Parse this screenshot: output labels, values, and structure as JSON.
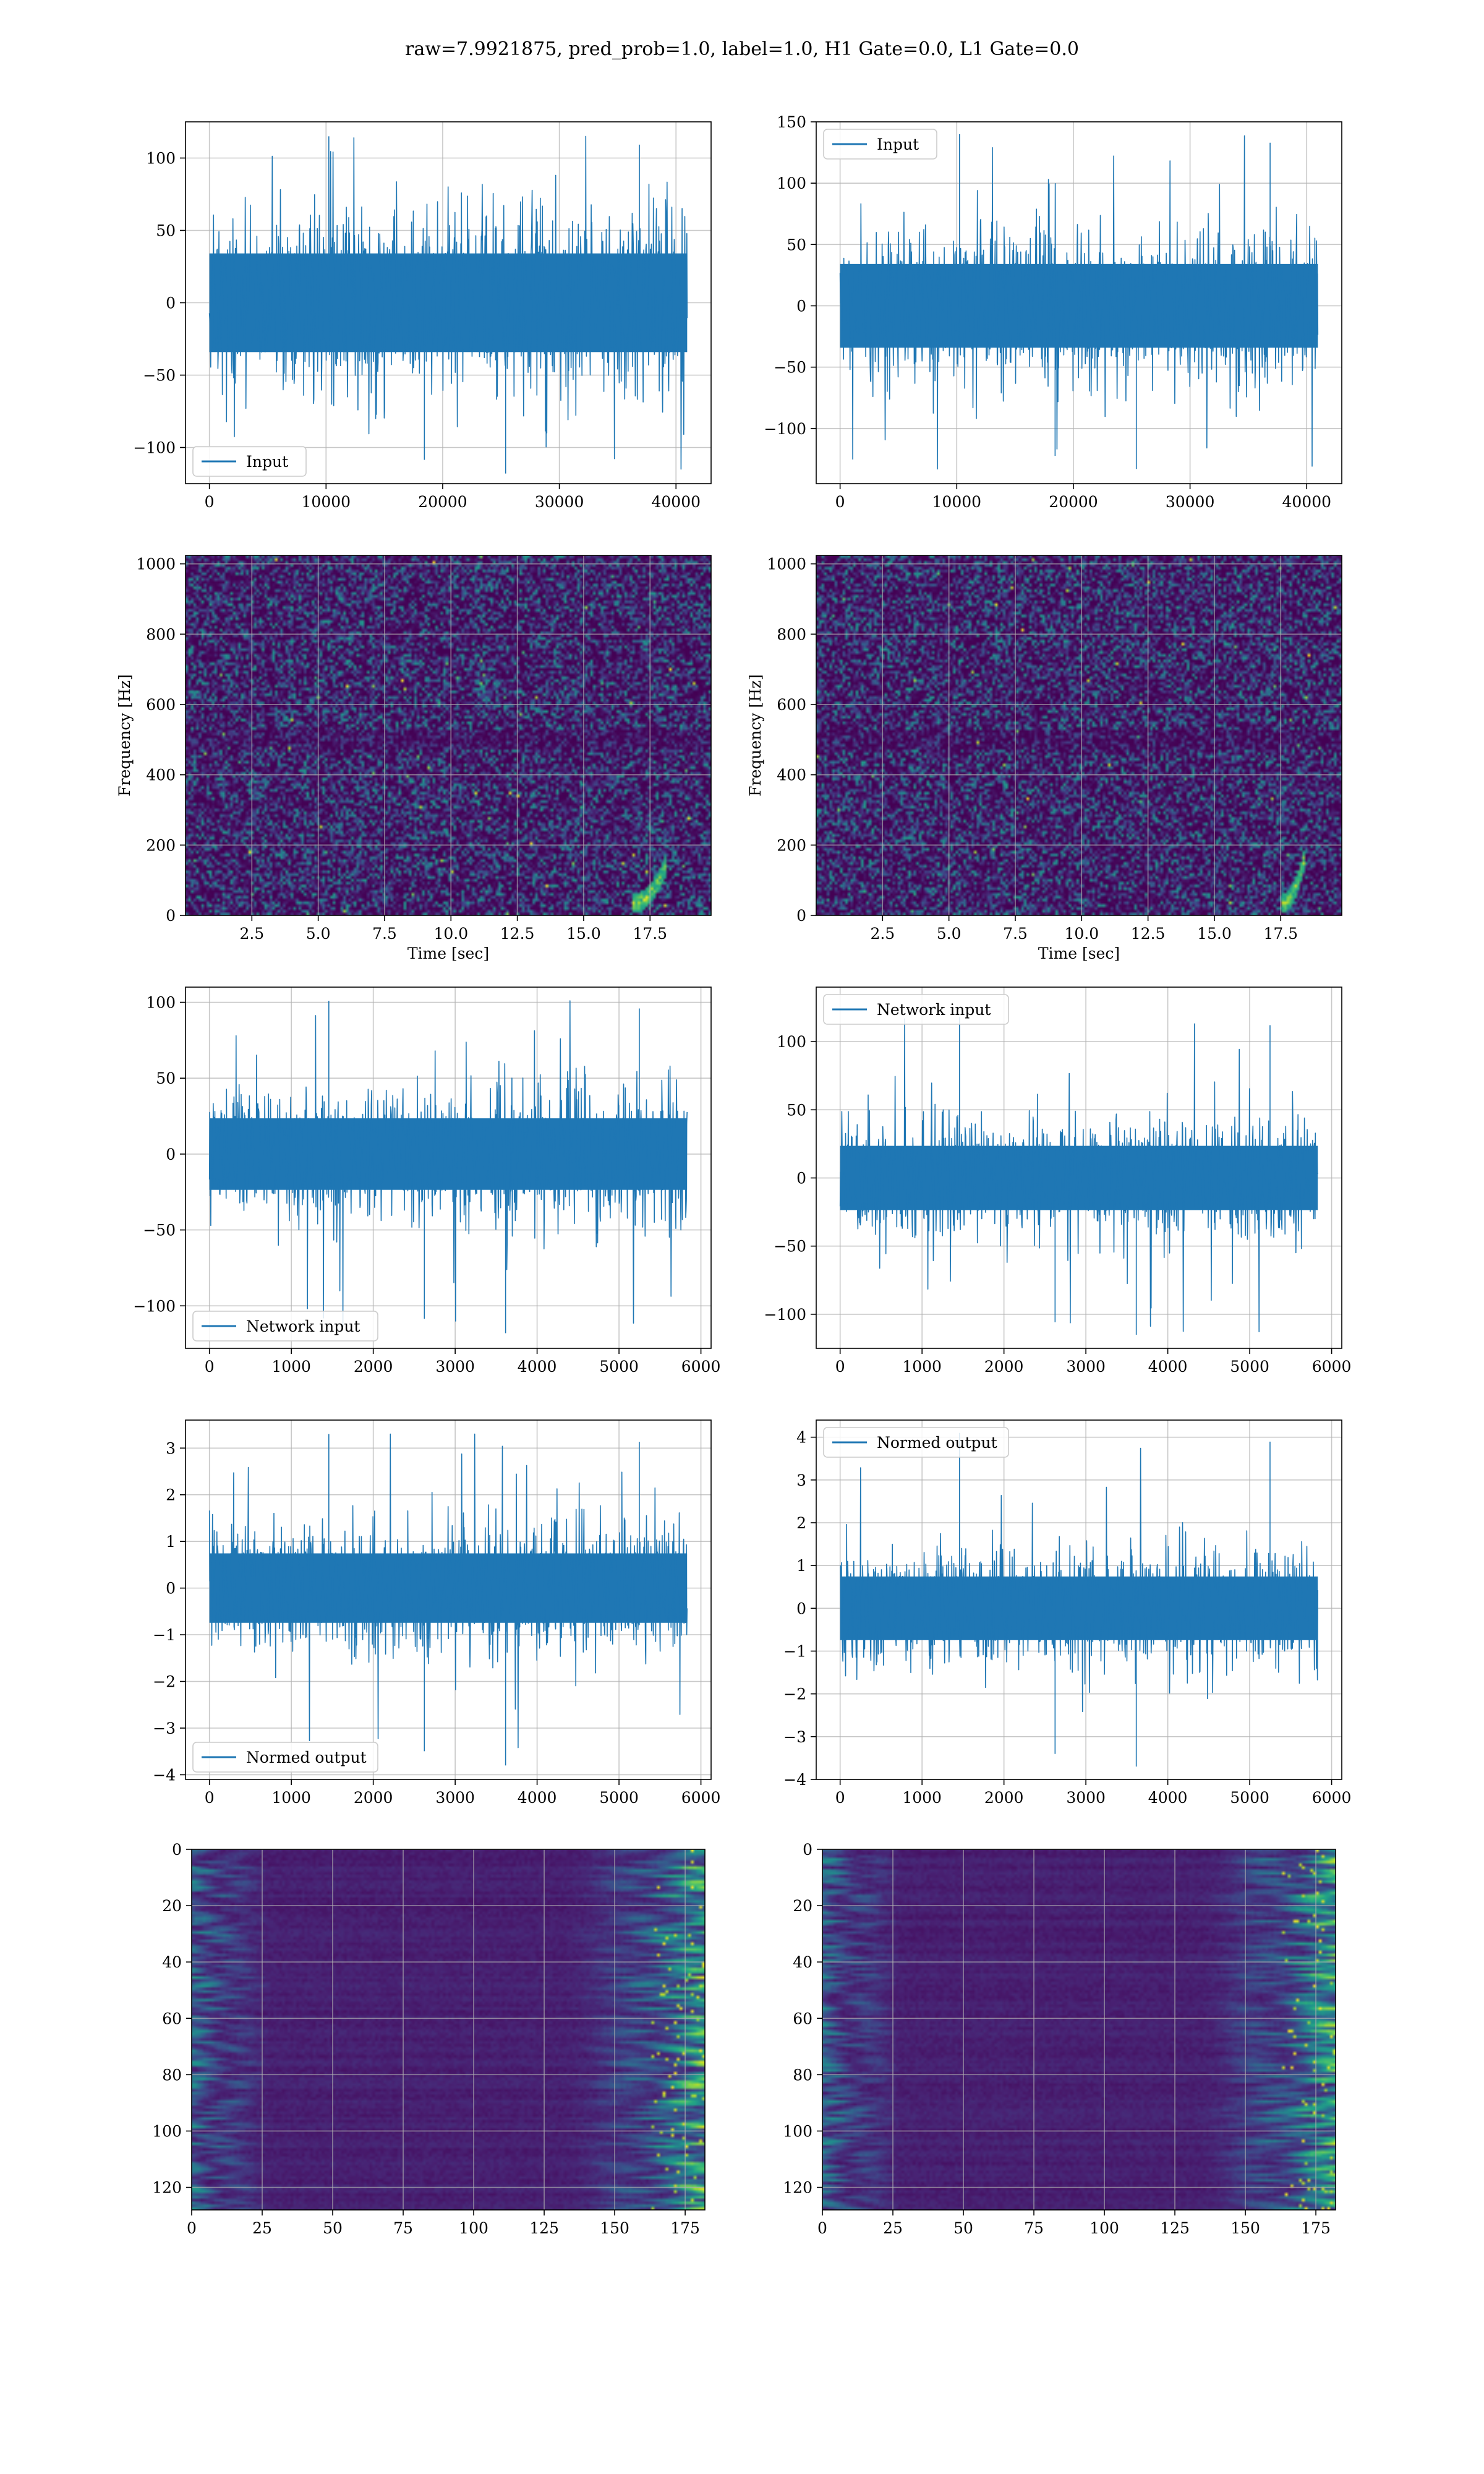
{
  "figure": {
    "suptitle": "raw=7.9921875, pred_prob=1.0, label=1.0, H1 Gate=0.0, L1 Gate=0.0",
    "line_color": "#1f77b4"
  },
  "chart_data": [
    {
      "id": "input-h1",
      "type": "line",
      "title": "",
      "xlabel": "",
      "ylabel": "",
      "series": [
        {
          "name": "Input",
          "n_points": 40960
        }
      ],
      "xlim": [
        -2048,
        43008
      ],
      "ylim": [
        -125,
        125
      ],
      "xticks": [
        0,
        10000,
        20000,
        30000,
        40000
      ],
      "yticks": [
        -100,
        -50,
        0,
        50,
        100
      ],
      "xticklabels": [
        "0",
        "10000",
        "20000",
        "30000",
        "40000"
      ],
      "yticklabels": [
        "−100",
        "−50",
        "0",
        "50",
        "100"
      ],
      "envelope": {
        "body": 55,
        "peak_min": -118,
        "peak_max": 115
      },
      "legend": "lower left",
      "grid": true
    },
    {
      "id": "input-l1",
      "type": "line",
      "title": "",
      "xlabel": "",
      "ylabel": "",
      "series": [
        {
          "name": "Input",
          "n_points": 40960
        }
      ],
      "xlim": [
        -2048,
        43008
      ],
      "ylim": [
        -145,
        150
      ],
      "xticks": [
        0,
        10000,
        20000,
        30000,
        40000
      ],
      "yticks": [
        -100,
        -50,
        0,
        50,
        100,
        150
      ],
      "xticklabels": [
        "0",
        "10000",
        "20000",
        "30000",
        "40000"
      ],
      "yticklabels": [
        "−100",
        "−50",
        "0",
        "50",
        "100",
        "150"
      ],
      "envelope": {
        "body": 55,
        "peak_min": -133,
        "peak_max": 140
      },
      "legend": "upper left",
      "grid": true
    },
    {
      "id": "spectrogram-h1",
      "type": "heatmap",
      "title": "",
      "xlabel": "Time [sec]",
      "ylabel": "Frequency [Hz]",
      "xlim": [
        0,
        19.8
      ],
      "ylim": [
        0,
        1024
      ],
      "xticks": [
        2.5,
        5.0,
        7.5,
        10.0,
        12.5,
        15.0,
        17.5
      ],
      "yticks": [
        0,
        200,
        400,
        600,
        800,
        1000
      ],
      "xticklabels": [
        "2.5",
        "5.0",
        "7.5",
        "10.0",
        "12.5",
        "15.0",
        "17.5"
      ],
      "yticklabels": [
        "0",
        "200",
        "400",
        "600",
        "800",
        "1000"
      ],
      "colormap": "viridis",
      "grid": true,
      "chirp": {
        "t_start": 16.9,
        "t_end": 18.2,
        "f_start": 30,
        "f_end": 150
      }
    },
    {
      "id": "spectrogram-l1",
      "type": "heatmap",
      "title": "",
      "xlabel": "Time [sec]",
      "ylabel": "Frequency [Hz]",
      "xlim": [
        0,
        19.8
      ],
      "ylim": [
        0,
        1024
      ],
      "xticks": [
        2.5,
        5.0,
        7.5,
        10.0,
        12.5,
        15.0,
        17.5
      ],
      "yticks": [
        0,
        200,
        400,
        600,
        800,
        1000
      ],
      "xticklabels": [
        "2.5",
        "5.0",
        "7.5",
        "10.0",
        "12.5",
        "15.0",
        "17.5"
      ],
      "yticklabels": [
        "0",
        "200",
        "400",
        "600",
        "800",
        "1000"
      ],
      "colormap": "viridis",
      "grid": true,
      "chirp": {
        "t_start": 17.6,
        "t_end": 18.5,
        "f_start": 30,
        "f_end": 180
      }
    },
    {
      "id": "network-input-h1",
      "type": "line",
      "title": "",
      "xlabel": "",
      "ylabel": "",
      "series": [
        {
          "name": "Network input",
          "n_points": 5832
        }
      ],
      "xlim": [
        -292,
        6124
      ],
      "ylim": [
        -128,
        110
      ],
      "xticks": [
        0,
        1000,
        2000,
        3000,
        4000,
        5000,
        6000
      ],
      "yticks": [
        -100,
        -50,
        0,
        50,
        100
      ],
      "xticklabels": [
        "0",
        "1000",
        "2000",
        "3000",
        "4000",
        "5000",
        "6000"
      ],
      "yticklabels": [
        "−100",
        "−50",
        "0",
        "50",
        "100"
      ],
      "envelope": {
        "body": 38,
        "peak_min": -118,
        "peak_max": 101
      },
      "legend": "lower left",
      "grid": true
    },
    {
      "id": "network-input-l1",
      "type": "line",
      "title": "",
      "xlabel": "",
      "ylabel": "",
      "series": [
        {
          "name": "Network input",
          "n_points": 5832
        }
      ],
      "xlim": [
        -292,
        6124
      ],
      "ylim": [
        -125,
        140
      ],
      "xticks": [
        0,
        1000,
        2000,
        3000,
        4000,
        5000,
        6000
      ],
      "yticks": [
        -100,
        -50,
        0,
        50,
        100
      ],
      "xticklabels": [
        "0",
        "1000",
        "2000",
        "3000",
        "4000",
        "5000",
        "6000"
      ],
      "yticklabels": [
        "−100",
        "−50",
        "0",
        "50",
        "100"
      ],
      "envelope": {
        "body": 38,
        "peak_min": -115,
        "peak_max": 118
      },
      "legend": "upper left",
      "grid": true
    },
    {
      "id": "normed-output-h1",
      "type": "line",
      "title": "",
      "xlabel": "",
      "ylabel": "",
      "series": [
        {
          "name": "Normed output",
          "n_points": 5832
        }
      ],
      "xlim": [
        -292,
        6124
      ],
      "ylim": [
        -4.1,
        3.6
      ],
      "xticks": [
        0,
        1000,
        2000,
        3000,
        4000,
        5000,
        6000
      ],
      "yticks": [
        -4,
        -3,
        -2,
        -1,
        0,
        1,
        2,
        3
      ],
      "xticklabels": [
        "0",
        "1000",
        "2000",
        "3000",
        "4000",
        "5000",
        "6000"
      ],
      "yticklabels": [
        "−4",
        "−3",
        "−2",
        "−1",
        "0",
        "1",
        "2",
        "3"
      ],
      "envelope": {
        "body": 1.2,
        "peak_min": -3.8,
        "peak_max": 3.3
      },
      "legend": "lower left",
      "grid": true
    },
    {
      "id": "normed-output-l1",
      "type": "line",
      "title": "",
      "xlabel": "",
      "ylabel": "",
      "series": [
        {
          "name": "Normed output",
          "n_points": 5832
        }
      ],
      "xlim": [
        -292,
        6124
      ],
      "ylim": [
        -4.0,
        4.4
      ],
      "xticks": [
        0,
        1000,
        2000,
        3000,
        4000,
        5000,
        6000
      ],
      "yticks": [
        -4,
        -3,
        -2,
        -1,
        0,
        1,
        2,
        3,
        4
      ],
      "xticklabels": [
        "0",
        "1000",
        "2000",
        "3000",
        "4000",
        "5000",
        "6000"
      ],
      "yticklabels": [
        "−4",
        "−3",
        "−2",
        "−1",
        "0",
        "1",
        "2",
        "3",
        "4"
      ],
      "envelope": {
        "body": 1.2,
        "peak_min": -3.7,
        "peak_max": 4.1
      },
      "legend": "upper left",
      "grid": true
    },
    {
      "id": "feature-map-h1",
      "type": "heatmap",
      "title": "",
      "xlabel": "",
      "ylabel": "",
      "rows": 128,
      "cols": 182,
      "xlim": [
        0,
        182
      ],
      "ylim": [
        128,
        0
      ],
      "xticks": [
        0,
        25,
        50,
        75,
        100,
        125,
        150,
        175
      ],
      "yticks": [
        0,
        20,
        40,
        60,
        80,
        100,
        120
      ],
      "xticklabels": [
        "0",
        "25",
        "50",
        "75",
        "100",
        "125",
        "150",
        "175"
      ],
      "yticklabels": [
        "0",
        "20",
        "40",
        "60",
        "80",
        "100",
        "120"
      ],
      "colormap": "viridis",
      "grid": true
    },
    {
      "id": "feature-map-l1",
      "type": "heatmap",
      "title": "",
      "xlabel": "",
      "ylabel": "",
      "rows": 128,
      "cols": 182,
      "xlim": [
        0,
        182
      ],
      "ylim": [
        128,
        0
      ],
      "xticks": [
        0,
        25,
        50,
        75,
        100,
        125,
        150,
        175
      ],
      "yticks": [
        0,
        20,
        40,
        60,
        80,
        100,
        120
      ],
      "xticklabels": [
        "0",
        "25",
        "50",
        "75",
        "100",
        "125",
        "150",
        "175"
      ],
      "yticklabels": [
        "0",
        "20",
        "40",
        "60",
        "80",
        "100",
        "120"
      ],
      "colormap": "viridis",
      "grid": true
    }
  ]
}
